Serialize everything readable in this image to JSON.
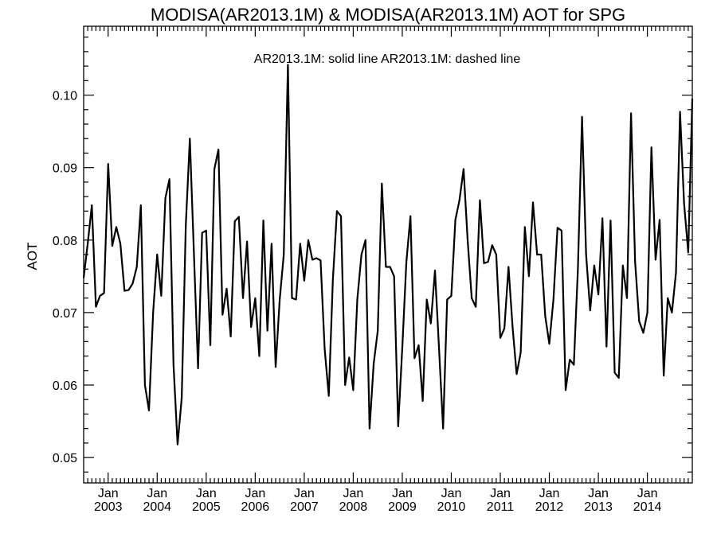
{
  "chart_data": {
    "type": "line",
    "title": "MODISA(AR2013.1M) & MODISA(AR2013.1M)  AOT for SPG",
    "annotation": "AR2013.1M: solid line   AR2013.1M: dashed line",
    "xlabel": "",
    "ylabel": "AOT",
    "ylim": [
      0.0465,
      0.1095
    ],
    "yticks": [
      0.05,
      0.06,
      0.07,
      0.08,
      0.09,
      0.1
    ],
    "ytick_labels": [
      "0.05",
      "0.06",
      "0.07",
      "0.08",
      "0.09",
      "0.10"
    ],
    "xlim": [
      "2002-07",
      "2014-12"
    ],
    "xticks": [
      {
        "date": "2003-01",
        "label_top": "Jan",
        "label_bottom": "2003"
      },
      {
        "date": "2004-01",
        "label_top": "Jan",
        "label_bottom": "2004"
      },
      {
        "date": "2005-01",
        "label_top": "Jan",
        "label_bottom": "2005"
      },
      {
        "date": "2006-01",
        "label_top": "Jan",
        "label_bottom": "2006"
      },
      {
        "date": "2007-01",
        "label_top": "Jan",
        "label_bottom": "2007"
      },
      {
        "date": "2008-01",
        "label_top": "Jan",
        "label_bottom": "2008"
      },
      {
        "date": "2009-01",
        "label_top": "Jan",
        "label_bottom": "2009"
      },
      {
        "date": "2010-01",
        "label_top": "Jan",
        "label_bottom": "2010"
      },
      {
        "date": "2011-01",
        "label_top": "Jan",
        "label_bottom": "2011"
      },
      {
        "date": "2012-01",
        "label_top": "Jan",
        "label_bottom": "2012"
      },
      {
        "date": "2013-01",
        "label_top": "Jan",
        "label_bottom": "2013"
      },
      {
        "date": "2014-01",
        "label_top": "Jan",
        "label_bottom": "2014"
      }
    ],
    "grid": false,
    "series": [
      {
        "style": "solid",
        "color": "#000000",
        "x": [
          "2002-07",
          "2002-08",
          "2002-09",
          "2002-10",
          "2002-11",
          "2002-12",
          "2003-01",
          "2003-02",
          "2003-03",
          "2003-04",
          "2003-05",
          "2003-06",
          "2003-07",
          "2003-08",
          "2003-09",
          "2003-10",
          "2003-11",
          "2003-12",
          "2004-01",
          "2004-02",
          "2004-03",
          "2004-04",
          "2004-05",
          "2004-06",
          "2004-07",
          "2004-08",
          "2004-09",
          "2004-10",
          "2004-11",
          "2004-12",
          "2005-01",
          "2005-02",
          "2005-03",
          "2005-04",
          "2005-05",
          "2005-06",
          "2005-07",
          "2005-08",
          "2005-09",
          "2005-10",
          "2005-11",
          "2005-12",
          "2006-01",
          "2006-02",
          "2006-03",
          "2006-04",
          "2006-05",
          "2006-06",
          "2006-07",
          "2006-08",
          "2006-09",
          "2006-10",
          "2006-11",
          "2006-12",
          "2007-01",
          "2007-02",
          "2007-03",
          "2007-04",
          "2007-05",
          "2007-06",
          "2007-07",
          "2007-08",
          "2007-09",
          "2007-10",
          "2007-11",
          "2007-12",
          "2008-01",
          "2008-02",
          "2008-03",
          "2008-04",
          "2008-05",
          "2008-06",
          "2008-07",
          "2008-08",
          "2008-09",
          "2008-10",
          "2008-11",
          "2008-12",
          "2009-01",
          "2009-02",
          "2009-03",
          "2009-04",
          "2009-05",
          "2009-06",
          "2009-07",
          "2009-08",
          "2009-09",
          "2009-10",
          "2009-11",
          "2009-12",
          "2010-01",
          "2010-02",
          "2010-03",
          "2010-04",
          "2010-05",
          "2010-06",
          "2010-07",
          "2010-08",
          "2010-09",
          "2010-10",
          "2010-11",
          "2010-12",
          "2011-01",
          "2011-02",
          "2011-03",
          "2011-04",
          "2011-05",
          "2011-06",
          "2011-07",
          "2011-08",
          "2011-09",
          "2011-10",
          "2011-11",
          "2011-12",
          "2012-01",
          "2012-02",
          "2012-03",
          "2012-04",
          "2012-05",
          "2012-06",
          "2012-07",
          "2012-08",
          "2012-09",
          "2012-10",
          "2012-11",
          "2012-12",
          "2013-01",
          "2013-02",
          "2013-03",
          "2013-04",
          "2013-05",
          "2013-06",
          "2013-07",
          "2013-08",
          "2013-09",
          "2013-10",
          "2013-11",
          "2013-12",
          "2014-01",
          "2014-02",
          "2014-03",
          "2014-04",
          "2014-05",
          "2014-06",
          "2014-07",
          "2014-08",
          "2014-09",
          "2014-10",
          "2014-11",
          "2014-12"
        ],
        "y": [
          0.0748,
          0.0795,
          0.0848,
          0.0708,
          0.0723,
          0.0727,
          0.0905,
          0.0792,
          0.0818,
          0.0795,
          0.073,
          0.0731,
          0.074,
          0.0763,
          0.0848,
          0.06,
          0.0565,
          0.07,
          0.078,
          0.0723,
          0.0858,
          0.0884,
          0.0628,
          0.0518,
          0.0582,
          0.082,
          0.094,
          0.0782,
          0.0623,
          0.081,
          0.0813,
          0.0655,
          0.0898,
          0.0925,
          0.0697,
          0.0733,
          0.0667,
          0.0826,
          0.0832,
          0.072,
          0.0798,
          0.068,
          0.072,
          0.064,
          0.0827,
          0.0675,
          0.0795,
          0.0625,
          0.0718,
          0.078,
          0.1042,
          0.072,
          0.0718,
          0.0795,
          0.0744,
          0.08,
          0.0773,
          0.0775,
          0.0772,
          0.065,
          0.0585,
          0.0745,
          0.084,
          0.0833,
          0.06,
          0.0638,
          0.0593,
          0.0718,
          0.078,
          0.08,
          0.054,
          0.063,
          0.0675,
          0.0878,
          0.0763,
          0.0763,
          0.075,
          0.0543,
          0.065,
          0.077,
          0.0833,
          0.0637,
          0.0655,
          0.0578,
          0.0718,
          0.0685,
          0.0758,
          0.065,
          0.054,
          0.0718,
          0.0723,
          0.0828,
          0.0855,
          0.0898,
          0.08,
          0.072,
          0.0708,
          0.0855,
          0.0768,
          0.077,
          0.0793,
          0.078,
          0.0665,
          0.0678,
          0.0763,
          0.068,
          0.0615,
          0.0645,
          0.0818,
          0.075,
          0.0852,
          0.078,
          0.078,
          0.0695,
          0.0657,
          0.0718,
          0.0817,
          0.0813,
          0.0593,
          0.0635,
          0.0628,
          0.076,
          0.097,
          0.078,
          0.0703,
          0.0765,
          0.0725,
          0.083,
          0.0653,
          0.0827,
          0.0617,
          0.061,
          0.0765,
          0.072,
          0.0975,
          0.077,
          0.0688,
          0.0672,
          0.07,
          0.0928,
          0.0773,
          0.0828,
          0.0613,
          0.072,
          0.07,
          0.0755,
          0.0977,
          0.085,
          0.0783,
          0.0995
        ]
      }
    ]
  }
}
